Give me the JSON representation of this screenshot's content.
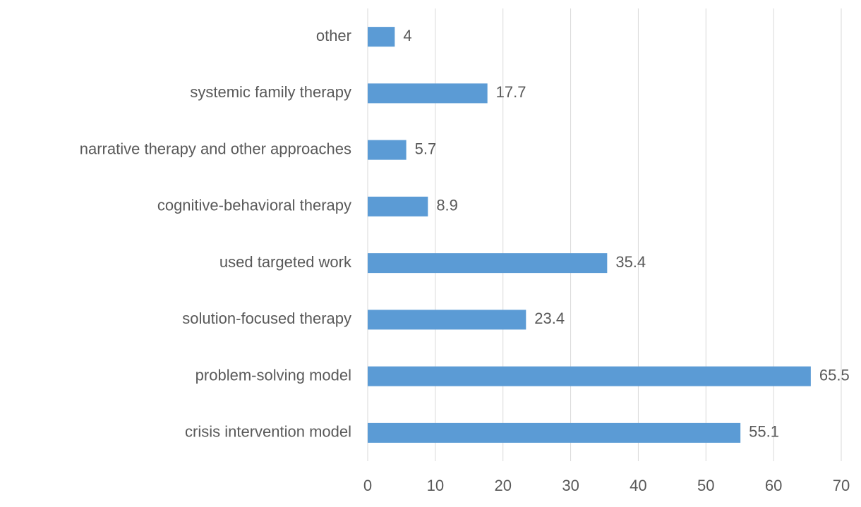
{
  "chart_data": {
    "type": "bar",
    "orientation": "horizontal",
    "categories": [
      "other",
      "systemic family therapy",
      "narrative therapy and other approaches",
      "cognitive-behavioral therapy",
      "used targeted work",
      "solution-focused therapy",
      "problem-solving model",
      "crisis intervention model"
    ],
    "values": [
      4,
      17.7,
      5.7,
      8.9,
      35.4,
      23.4,
      65.5,
      55.1
    ],
    "color": "#5b9bd5",
    "xlim": [
      0,
      70
    ],
    "xticks": [
      0,
      10,
      20,
      30,
      40,
      50,
      60,
      70
    ],
    "grid": true
  }
}
